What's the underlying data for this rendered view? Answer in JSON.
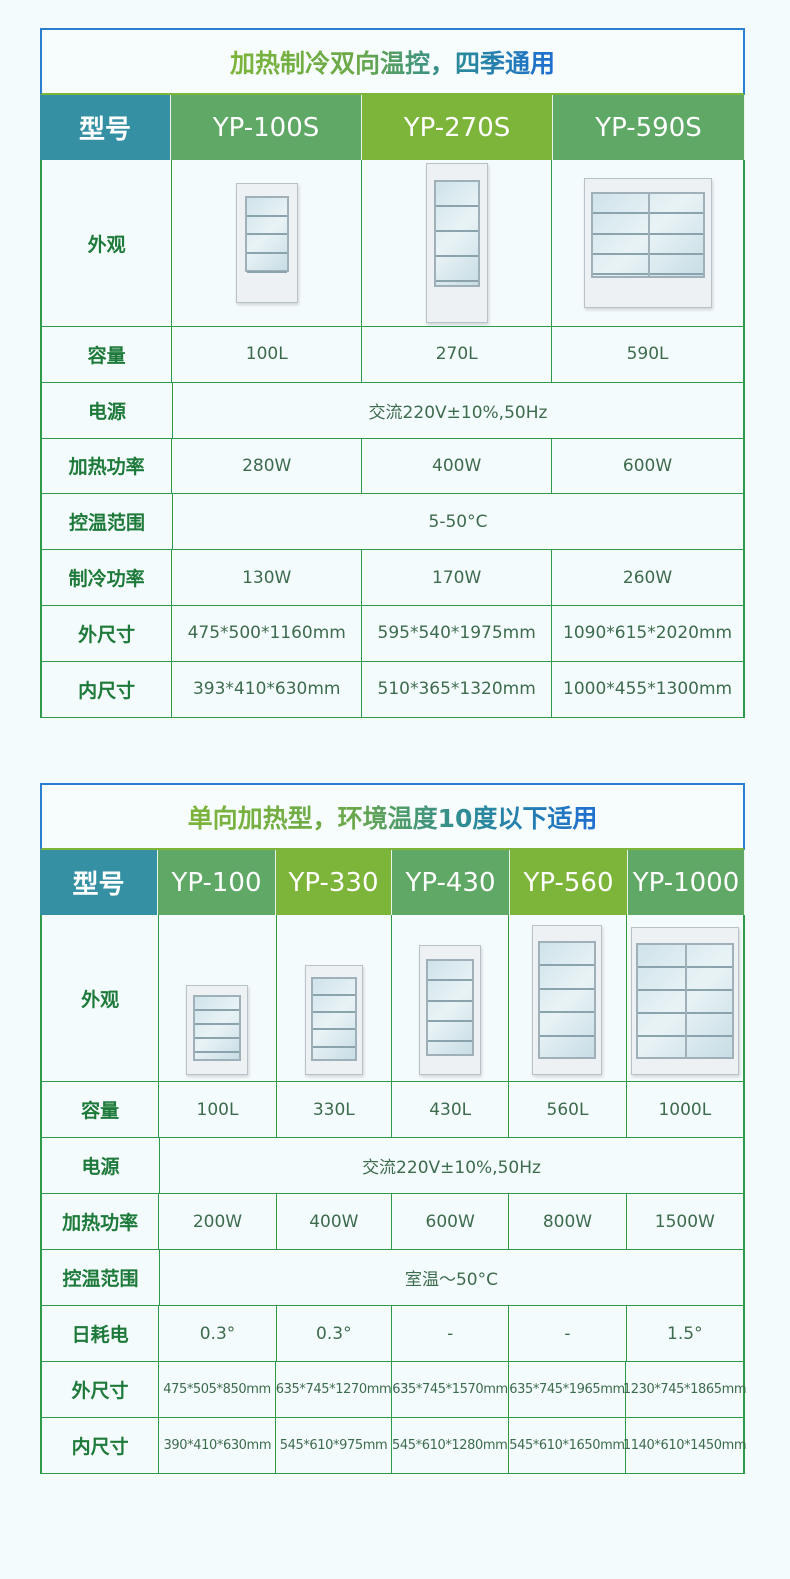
{
  "table1": {
    "title": "加热制冷双向温控，四季通用",
    "header": [
      "型号",
      "YP-100S",
      "YP-270S",
      "YP-590S"
    ],
    "rows": [
      {
        "label": "外观",
        "type": "image"
      },
      {
        "label": "容量",
        "values": [
          "100L",
          "270L",
          "590L"
        ]
      },
      {
        "label": "电源",
        "values": [
          "交流220V±10%,50Hz"
        ]
      },
      {
        "label": "加热功率",
        "values": [
          "280W",
          "400W",
          "600W"
        ]
      },
      {
        "label": "控温范围",
        "values": [
          "5-50°C"
        ]
      },
      {
        "label": "制冷功率",
        "values": [
          "130W",
          "170W",
          "260W"
        ]
      },
      {
        "label": "外尺寸",
        "values": [
          "475*500*1160mm",
          "595*540*1975mm",
          "1090*615*2020mm"
        ]
      },
      {
        "label": "内尺寸",
        "values": [
          "393*410*630mm",
          "510*365*1320mm",
          "1000*455*1300mm"
        ]
      }
    ]
  },
  "table2": {
    "title": "单向加热型，环境温度10度以下适用",
    "header": [
      "型号",
      "YP-100",
      "YP-330",
      "YP-430",
      "YP-560",
      "YP-1000"
    ],
    "rows": [
      {
        "label": "外观",
        "type": "image"
      },
      {
        "label": "容量",
        "values": [
          "100L",
          "330L",
          "430L",
          "560L",
          "1000L"
        ]
      },
      {
        "label": "电源",
        "values": [
          "交流220V±10%,50Hz"
        ]
      },
      {
        "label": "加热功率",
        "values": [
          "200W",
          "400W",
          "600W",
          "800W",
          "1500W"
        ]
      },
      {
        "label": "控温范围",
        "values": [
          "室温～50°C"
        ]
      },
      {
        "label": "日耗电",
        "values": [
          "0.3°",
          "0.3°",
          "-",
          "-",
          "1.5°"
        ]
      },
      {
        "label": "外尺寸",
        "values": [
          "475*505*850mm",
          "635*745*1270mm",
          "635*745*1570mm",
          "635*745*1965mm",
          "1230*745*1865mm"
        ]
      },
      {
        "label": "内尺寸",
        "values": [
          "390*410*630mm",
          "545*610*975mm",
          "545*610*1280mm",
          "545*610*1650mm",
          "1140*610*1450mm"
        ]
      }
    ]
  },
  "colors": {
    "header_label": "#3490a2",
    "header_green": "#5fa865",
    "header_lime": "#7db53a",
    "border": "#2e9a4a",
    "title_blue": "#1f6fd0"
  }
}
